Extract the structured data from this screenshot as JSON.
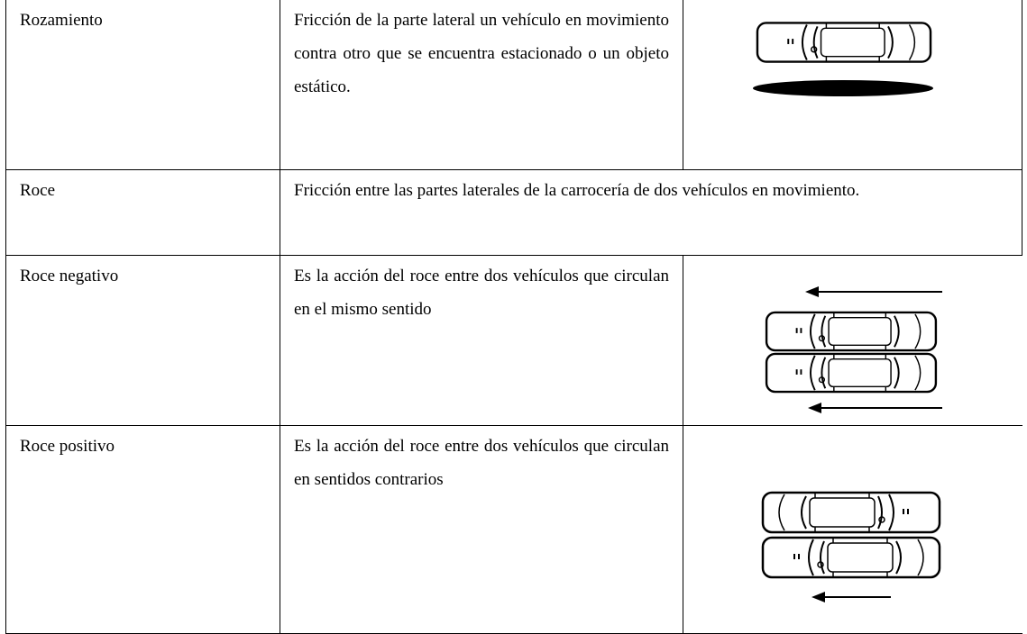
{
  "table": {
    "rows": [
      [
        "Rozamiento",
        "Fricción de la parte lateral un vehículo en movimiento contra otro que se encuentra estacionado o un objeto estático."
      ],
      [
        "Roce",
        "Fricción entre las partes laterales de la carrocería de dos vehículos en movimiento."
      ],
      [
        "Roce negativo",
        "Es la acción del roce entre dos vehículos que circulan en el mismo sentido"
      ],
      [
        "Roce positivo",
        "Es la acción del roce entre dos vehículos que circulan en sentidos contrarios"
      ]
    ]
  }
}
